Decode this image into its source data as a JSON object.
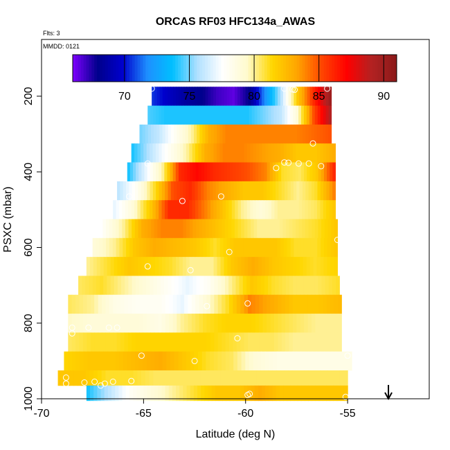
{
  "chart_data": {
    "type": "heatmap",
    "title": "ORCAS RF03 HFC134a_AWAS",
    "flights_label": "Flts: 3",
    "date_label": "MMDD: 0121",
    "xlabel": "Latitude (deg N)",
    "ylabel": "PSXC (mbar)",
    "xlim": [
      -70,
      -51
    ],
    "ylim": [
      1000,
      50
    ],
    "x_ticks": [
      -70,
      -65,
      -60,
      -55
    ],
    "x_tick_labels": [
      "-70",
      "-65",
      "-60",
      "-55"
    ],
    "y_ticks": [
      200,
      400,
      600,
      800,
      1000
    ],
    "y_tick_labels": [
      "200",
      "400",
      "600",
      "800",
      "1000"
    ],
    "colorbar": {
      "range": [
        66,
        91
      ],
      "ticks": [
        70,
        75,
        80,
        85,
        90
      ],
      "tick_labels": [
        "70",
        "75",
        "80",
        "85",
        "90"
      ],
      "colors": [
        "#7f00ff",
        "#00008b",
        "#0000cd",
        "#1e90ff",
        "#00bfff",
        "#b0e0ff",
        "#ffffff",
        "#fffacd",
        "#ffd700",
        "#ffa500",
        "#ff4500",
        "#ff0000",
        "#b22222",
        "#8b1a1a"
      ]
    },
    "bands": [
      {
        "p_top": 175,
        "p_bot": 225,
        "x_start": -64.6,
        "x_end": -55.8,
        "values": [
          70.5,
          69.5,
          68.5,
          68,
          67,
          66.5,
          68,
          72,
          76,
          82,
          86,
          90
        ]
      },
      {
        "p_top": 225,
        "p_bot": 275,
        "x_start": -64.8,
        "x_end": -55.8,
        "values": [
          74.5,
          74,
          74,
          74,
          74,
          74,
          74,
          75,
          76,
          79,
          85,
          89
        ]
      },
      {
        "p_top": 275,
        "p_bot": 325,
        "x_start": -65.2,
        "x_end": -55.8,
        "values": [
          75,
          76,
          78,
          80,
          83,
          84,
          84,
          84,
          84,
          84,
          84.5,
          85
        ]
      },
      {
        "p_top": 325,
        "p_bot": 375,
        "x_start": -65.6,
        "x_end": -55.6,
        "values": [
          74,
          76,
          78,
          80,
          83,
          84,
          84,
          83.5,
          83,
          82,
          82,
          83
        ]
      },
      {
        "p_top": 375,
        "p_bot": 425,
        "x_start": -65.8,
        "x_end": -55.6,
        "values": [
          74,
          77,
          80,
          86,
          87,
          86,
          85.5,
          85,
          84,
          81,
          80.5,
          82,
          86
        ]
      },
      {
        "p_top": 425,
        "p_bot": 475,
        "x_start": -66.3,
        "x_end": -55.6,
        "values": [
          76,
          78,
          81,
          85,
          86,
          84,
          83,
          82,
          82,
          81,
          80,
          81,
          84
        ]
      },
      {
        "p_top": 475,
        "p_bot": 525,
        "x_start": -66.5,
        "x_end": -55.6,
        "values": [
          77,
          79,
          82,
          86,
          86,
          84,
          82,
          80,
          79,
          80,
          80,
          80.5,
          82
        ]
      },
      {
        "p_top": 525,
        "p_bot": 575,
        "x_start": -67.0,
        "x_end": -55.5,
        "values": [
          78,
          80,
          83,
          84,
          84,
          83,
          82,
          81,
          80,
          80,
          80.5,
          81,
          82
        ]
      },
      {
        "p_top": 575,
        "p_bot": 625,
        "x_start": -67.5,
        "x_end": -55.5,
        "values": [
          79,
          80,
          82,
          83,
          82.5,
          82,
          81,
          82,
          82,
          82,
          81,
          81,
          82
        ]
      },
      {
        "p_top": 625,
        "p_bot": 675,
        "x_start": -67.8,
        "x_end": -55.5,
        "values": [
          80,
          81,
          82,
          81.5,
          81,
          80,
          80,
          82,
          83,
          82,
          81.5,
          81,
          81.5
        ]
      },
      {
        "p_top": 675,
        "p_bot": 725,
        "x_start": -68.2,
        "x_end": -55.4,
        "values": [
          80.5,
          81,
          80,
          79,
          78,
          77,
          78,
          80,
          82,
          81,
          80.5,
          80.5,
          81
        ]
      },
      {
        "p_top": 725,
        "p_bot": 775,
        "x_start": -68.7,
        "x_end": -55.3,
        "values": [
          80.5,
          80,
          78.5,
          78,
          78,
          77,
          79,
          81,
          84,
          83,
          82,
          82,
          82.5
        ]
      },
      {
        "p_top": 775,
        "p_bot": 825,
        "x_start": -68.7,
        "x_end": -55.3,
        "values": [
          79.5,
          79,
          79,
          79,
          78.5,
          80,
          81,
          81.5,
          81.5,
          81,
          80.5,
          80,
          80
        ]
      },
      {
        "p_top": 825,
        "p_bot": 875,
        "x_start": -68.7,
        "x_end": -55.3,
        "values": [
          80.5,
          81,
          81,
          81.5,
          81.5,
          81.5,
          81.5,
          81,
          80.5,
          80.5,
          80,
          80,
          80
        ]
      },
      {
        "p_top": 875,
        "p_bot": 925,
        "x_start": -68.9,
        "x_end": -54.8,
        "values": [
          81.5,
          82,
          82,
          82.5,
          83,
          82,
          81,
          80.5,
          79,
          78.5,
          78.5,
          78.5,
          78.5
        ]
      },
      {
        "p_top": 925,
        "p_bot": 965,
        "x_start": -69.2,
        "x_end": -55.0,
        "values": [
          82,
          82,
          81,
          81,
          80.5,
          80.5,
          80.5,
          80.5,
          80.5,
          80.5,
          80.5,
          80.5,
          80.5
        ]
      },
      {
        "p_top": 965,
        "p_bot": 1005,
        "x_start": -67.8,
        "x_end": -55.0,
        "values": [
          74,
          76,
          78,
          79,
          80,
          81,
          82,
          82,
          83,
          82,
          82,
          82,
          82
        ]
      }
    ],
    "points": [
      [
        -64.6,
        180
      ],
      [
        -58.1,
        180
      ],
      [
        -57.7,
        182
      ],
      [
        -57.6,
        183
      ],
      [
        -56.0,
        180
      ],
      [
        -56.7,
        325
      ],
      [
        -64.8,
        378
      ],
      [
        -58.1,
        375
      ],
      [
        -57.9,
        376
      ],
      [
        -58.5,
        390
      ],
      [
        -57.4,
        378
      ],
      [
        -56.9,
        378
      ],
      [
        -56.3,
        385
      ],
      [
        -65.7,
        465
      ],
      [
        -63.1,
        477
      ],
      [
        -61.2,
        465
      ],
      [
        -55.5,
        580
      ],
      [
        -64.8,
        650
      ],
      [
        -60.8,
        612
      ],
      [
        -62.7,
        660
      ],
      [
        -61.9,
        755
      ],
      [
        -59.9,
        748
      ],
      [
        -68.5,
        812
      ],
      [
        -68.5,
        827
      ],
      [
        -67.7,
        812
      ],
      [
        -66.7,
        812
      ],
      [
        -66.3,
        812
      ],
      [
        -60.4,
        840
      ],
      [
        -65.1,
        886
      ],
      [
        -62.5,
        900
      ],
      [
        -55.0,
        886
      ],
      [
        -68.8,
        944
      ],
      [
        -68.8,
        960
      ],
      [
        -67.9,
        957
      ],
      [
        -67.4,
        955
      ],
      [
        -66.5,
        955
      ],
      [
        -67.1,
        965
      ],
      [
        -66.9,
        960
      ],
      [
        -65.6,
        953
      ],
      [
        -59.9,
        990
      ],
      [
        -59.8,
        987
      ],
      [
        -55.1,
        995
      ]
    ],
    "arrow_x": -53.0
  }
}
